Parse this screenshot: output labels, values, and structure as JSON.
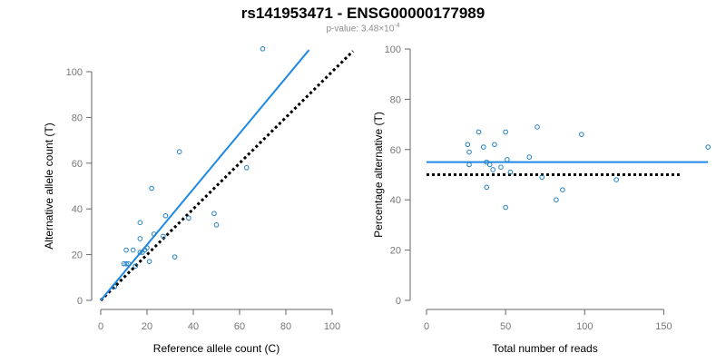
{
  "header": {
    "title": "rs141953471 - ENSG00000177989",
    "pvalue_label": "p-value: ",
    "pvalue_mantissa": "3.48",
    "pvalue_times": "×10",
    "pvalue_exponent": "-4"
  },
  "colors": {
    "points": "#1f7fc4",
    "fit_line": "#1e88e5",
    "reference_line": "#000000",
    "axis": "#666666",
    "tick_text": "#777777"
  },
  "chart_data": [
    {
      "type": "scatter",
      "xlabel": "Reference allele count (C)",
      "ylabel": "Alternative allele count (T)",
      "xlim": [
        0,
        100
      ],
      "ylim": [
        0,
        100
      ],
      "xticks": [
        0,
        20,
        40,
        60,
        80,
        100
      ],
      "yticks": [
        0,
        20,
        40,
        60,
        80,
        100
      ],
      "grid": false,
      "points": [
        [
          6,
          6
        ],
        [
          10,
          16
        ],
        [
          11,
          16
        ],
        [
          11,
          22
        ],
        [
          12,
          16
        ],
        [
          14,
          22
        ],
        [
          15,
          15
        ],
        [
          17,
          21
        ],
        [
          17,
          27
        ],
        [
          17,
          34
        ],
        [
          18,
          21
        ],
        [
          19,
          22
        ],
        [
          20,
          23
        ],
        [
          21,
          17
        ],
        [
          22,
          49
        ],
        [
          23,
          29
        ],
        [
          27,
          28
        ],
        [
          28,
          37
        ],
        [
          32,
          19
        ],
        [
          34,
          65
        ],
        [
          38,
          36
        ],
        [
          49,
          38
        ],
        [
          50,
          33
        ],
        [
          63,
          58
        ],
        [
          70,
          110
        ]
      ],
      "fit_line": {
        "x": [
          0,
          90
        ],
        "y": [
          0,
          109.5
        ]
      },
      "reference_line": {
        "x": [
          0,
          109
        ],
        "y": [
          0,
          109
        ]
      }
    },
    {
      "type": "scatter",
      "xlabel": "Total number of reads",
      "ylabel": "Percentage alternative (T)",
      "xlim": [
        0,
        175
      ],
      "ylim": [
        0,
        100
      ],
      "xticks": [
        0,
        50,
        100,
        150
      ],
      "yticks": [
        0,
        20,
        40,
        60,
        80,
        100
      ],
      "grid": false,
      "points": [
        [
          26,
          62
        ],
        [
          27,
          54
        ],
        [
          27,
          59
        ],
        [
          33,
          67
        ],
        [
          36,
          61
        ],
        [
          38,
          45
        ],
        [
          38,
          55
        ],
        [
          40,
          54
        ],
        [
          42,
          52
        ],
        [
          43,
          62
        ],
        [
          47,
          53
        ],
        [
          50,
          67
        ],
        [
          50,
          37
        ],
        [
          51,
          56
        ],
        [
          53,
          51
        ],
        [
          65,
          57
        ],
        [
          70,
          69
        ],
        [
          73,
          49
        ],
        [
          82,
          40
        ],
        [
          86,
          44
        ],
        [
          98,
          66
        ],
        [
          120,
          48
        ],
        [
          178,
          61
        ]
      ],
      "fit_line": {
        "x": [
          0,
          178
        ],
        "y": [
          55,
          55
        ]
      },
      "reference_line": {
        "x": [
          0,
          160
        ],
        "y": [
          50,
          50
        ]
      }
    }
  ]
}
